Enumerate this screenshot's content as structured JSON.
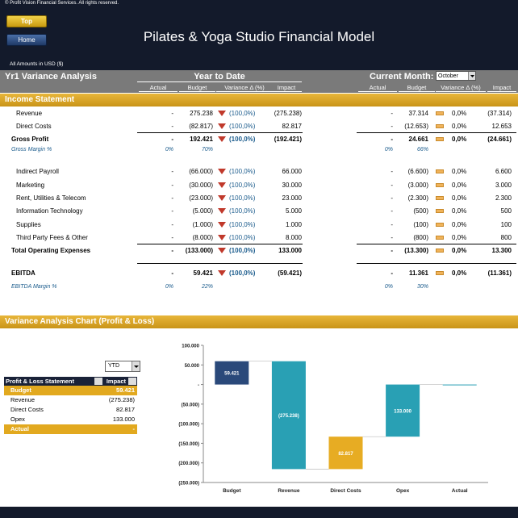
{
  "copyright": "© Profit Vision Financial Services. All rights reserved.",
  "nav": {
    "top": "Top",
    "home": "Home"
  },
  "title": "Pilates & Yoga Studio Financial Model",
  "amounts_note": "All Amounts in  USD ($)",
  "analysis_title": "Yr1 Variance Analysis",
  "ytd_header": "Year to Date",
  "cm_header": "Current Month:",
  "month_selected": "October",
  "columns": [
    "Actual",
    "Budget",
    "Variance Δ  (%)",
    "Impact"
  ],
  "income_statement_title": "Income Statement",
  "rows": [
    {
      "label": "Revenue",
      "ytd": [
        "-",
        "275.238",
        "(100,0%)",
        "(275.238)"
      ],
      "cm": [
        "-",
        "37.314",
        "0,0%",
        "(37.314)"
      ]
    },
    {
      "label": "Direct Costs",
      "ytd": [
        "-",
        "(82.817)",
        "(100,0%)",
        "82.817"
      ],
      "cm": [
        "-",
        "(12.653)",
        "0,0%",
        "12.653"
      ]
    },
    {
      "label": "Gross Profit",
      "bold": true,
      "ytd": [
        "-",
        "192.421",
        "(100,0%)",
        "(192.421)"
      ],
      "cm": [
        "-",
        "24.661",
        "0,0%",
        "(24.661)"
      ]
    },
    {
      "label": "Gross Margin %",
      "margin": true,
      "ytd": [
        "0%",
        "70%"
      ],
      "cm": [
        "0%",
        "66%"
      ]
    },
    {
      "label": "Indirect Payroll",
      "ytd": [
        "-",
        "(66.000)",
        "(100,0%)",
        "66.000"
      ],
      "cm": [
        "-",
        "(6.600)",
        "0,0%",
        "6.600"
      ]
    },
    {
      "label": "Marketing",
      "ytd": [
        "-",
        "(30.000)",
        "(100,0%)",
        "30.000"
      ],
      "cm": [
        "-",
        "(3.000)",
        "0,0%",
        "3.000"
      ]
    },
    {
      "label": "Rent, Utilities & Telecom",
      "ytd": [
        "-",
        "(23.000)",
        "(100,0%)",
        "23.000"
      ],
      "cm": [
        "-",
        "(2.300)",
        "0,0%",
        "2.300"
      ]
    },
    {
      "label": "Information Technology",
      "ytd": [
        "-",
        "(5.000)",
        "(100,0%)",
        "5.000"
      ],
      "cm": [
        "-",
        "(500)",
        "0,0%",
        "500"
      ]
    },
    {
      "label": "Supplies",
      "ytd": [
        "-",
        "(1.000)",
        "(100,0%)",
        "1.000"
      ],
      "cm": [
        "-",
        "(100)",
        "0,0%",
        "100"
      ]
    },
    {
      "label": "Third Party Fees & Other",
      "ytd": [
        "-",
        "(8.000)",
        "(100,0%)",
        "8.000"
      ],
      "cm": [
        "-",
        "(800)",
        "0,0%",
        "800"
      ]
    },
    {
      "label": "Total Operating Expenses",
      "bold": true,
      "ytd": [
        "-",
        "(133.000)",
        "(100,0%)",
        "133.000"
      ],
      "cm": [
        "-",
        "(13.300)",
        "0,0%",
        "13.300"
      ]
    },
    {
      "label": "EBITDA",
      "bold": true,
      "ytd": [
        "-",
        "59.421",
        "(100,0%)",
        "(59.421)"
      ],
      "cm": [
        "-",
        "11.361",
        "0,0%",
        "(11.361)"
      ]
    },
    {
      "label": "EBITDA Margin %",
      "margin": true,
      "ytd": [
        "0%",
        "22%"
      ],
      "cm": [
        "0%",
        "30%"
      ]
    }
  ],
  "chart_section_title": "Variance Analysis Chart (Profit & Loss)",
  "period_select": "YTD",
  "pl_table": {
    "header": [
      "Profit & Loss Statement",
      "Impact"
    ],
    "rows": [
      {
        "name": "Budget",
        "value": "59.421",
        "gold": true
      },
      {
        "name": "Revenue",
        "value": "(275.238)"
      },
      {
        "name": "Direct Costs",
        "value": "82.817"
      },
      {
        "name": "Opex",
        "value": "133.000"
      },
      {
        "name": "Actual",
        "value": "-",
        "gold": true
      }
    ]
  },
  "chart_data": {
    "type": "bar",
    "subtype": "waterfall",
    "categories": [
      "Budget",
      "Revenue",
      "Direct Costs",
      "Opex",
      "Actual"
    ],
    "base": [
      0,
      -215817,
      -215817,
      -133000,
      0
    ],
    "top": [
      59421,
      59421,
      -133000,
      0,
      0
    ],
    "labels": [
      "59.421",
      "(275.238)",
      "82.817",
      "133.000",
      ""
    ],
    "colors": [
      "#1f3f73",
      "#1e9bb0",
      "#e6a817",
      "#1e9bb0",
      "#1e9bb0"
    ],
    "ylim": [
      -250000,
      100000
    ],
    "ticks": [
      100000,
      50000,
      0,
      -50000,
      -100000,
      -150000,
      -200000,
      -250000
    ],
    "tick_labels": [
      "100.000",
      "50.000",
      "-",
      "(50.000)",
      "(100.000)",
      "(150.000)",
      "(200.000)",
      "(250.000)"
    ],
    "grid": false
  }
}
